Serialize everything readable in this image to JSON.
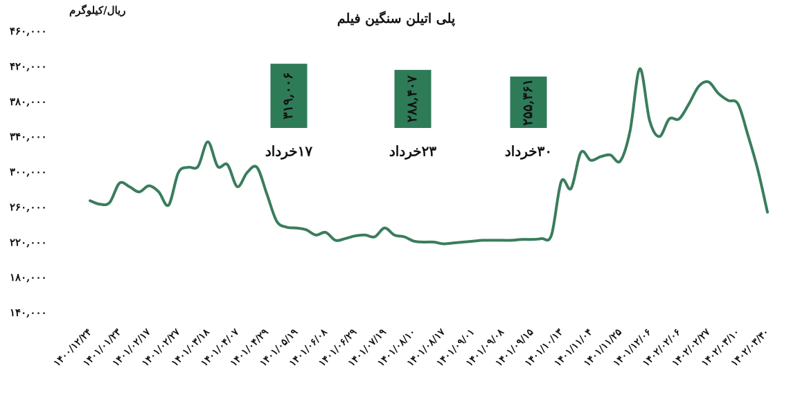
{
  "chart_data": {
    "type": "line",
    "title": "پلی اتیلن سنگین فیلم",
    "y_label": "ریال/کیلوگرم",
    "categories": [
      "۱۴۰۰/۱۲/۲۴",
      null,
      null,
      "۱۴۰۱/۰۱/۲۳",
      null,
      null,
      "۱۴۰۱/۰۲/۱۷",
      null,
      null,
      "۱۴۰۱/۰۲/۲۷",
      null,
      null,
      "۱۴۰۱/۰۳/۱۸",
      null,
      null,
      "۱۴۰۱/۰۴/۰۷",
      null,
      null,
      "۱۴۰۱/۰۴/۲۹",
      null,
      null,
      "۱۴۰۱/۰۵/۱۹",
      null,
      null,
      "۱۴۰۱/۰۶/۰۸",
      null,
      null,
      "۱۴۰۱/۰۶/۲۹",
      null,
      null,
      "۱۴۰۱/۰۷/۱۹",
      null,
      null,
      "۱۴۰۱/۰۸/۱۰",
      null,
      null,
      "۱۴۰۱/۰۸/۱۷",
      null,
      null,
      "۱۴۰۱/۰۹/۰۱",
      null,
      null,
      "۱۴۰۱/۰۹/۰۸",
      null,
      null,
      "۱۴۰۱/۰۹/۱۵",
      null,
      null,
      "۱۴۰۱/۱۰/۱۳",
      null,
      null,
      "۱۴۰۱/۱۱/۰۴",
      null,
      null,
      "۱۴۰۱/۱۱/۲۵",
      null,
      null,
      "۱۴۰۱/۱۲/۰۶",
      null,
      null,
      "۱۴۰۲/۰۲/۰۶",
      null,
      null,
      "۱۴۰۲/۰۲/۲۷",
      null,
      null,
      "۱۴۰۲/۰۳/۱۰",
      null,
      null,
      "۱۴۰۲/۰۳/۳۰"
    ],
    "series": [
      {
        "name": "پلی اتیلن سنگین فیلم",
        "color": "#3a7d5c",
        "values": [
          268000,
          264000,
          266000,
          288000,
          284000,
          278000,
          285000,
          278000,
          263000,
          300000,
          306000,
          307000,
          335000,
          307000,
          309000,
          284000,
          300000,
          306000,
          276000,
          245000,
          238000,
          237000,
          235000,
          229000,
          232000,
          223000,
          225000,
          228000,
          229000,
          227000,
          237000,
          229000,
          227000,
          222000,
          221000,
          221000,
          219000,
          220000,
          221000,
          222000,
          223000,
          223000,
          223000,
          223000,
          224000,
          224000,
          225000,
          229000,
          290000,
          282000,
          323000,
          314000,
          318000,
          320000,
          313000,
          347000,
          418000,
          359000,
          341000,
          361000,
          361000,
          378000,
          398000,
          403000,
          390000,
          382000,
          378000,
          343000,
          304000,
          255000
        ]
      }
    ],
    "ylim": [
      140000,
      460000
    ],
    "yticks": [
      {
        "value": 140000,
        "label": "۱۴۰,۰۰۰"
      },
      {
        "value": 180000,
        "label": "۱۸۰,۰۰۰"
      },
      {
        "value": 220000,
        "label": "۲۲۰,۰۰۰"
      },
      {
        "value": 260000,
        "label": "۲۶۰,۰۰۰"
      },
      {
        "value": 300000,
        "label": "۳۰۰,۰۰۰"
      },
      {
        "value": 340000,
        "label": "۳۴۰,۰۰۰"
      },
      {
        "value": 380000,
        "label": "۳۸۰,۰۰۰"
      },
      {
        "value": 420000,
        "label": "۴۲۰,۰۰۰"
      },
      {
        "value": 460000,
        "label": "۴۶۰,۰۰۰"
      }
    ],
    "grid": false,
    "annotations": [
      {
        "text": "۱۷خرداد",
        "value": 319006,
        "value_label": "۳۱۹,۰۰۶",
        "color": "#2e7b58"
      },
      {
        "text": "۲۳خرداد",
        "value": 288407,
        "value_label": "۲۸۸,۴۰۷",
        "color": "#2e7b58"
      },
      {
        "text": "۳۰خرداد",
        "value": 255361,
        "value_label": "۲۵۵,۳۶۱",
        "color": "#2e7b58"
      }
    ]
  }
}
